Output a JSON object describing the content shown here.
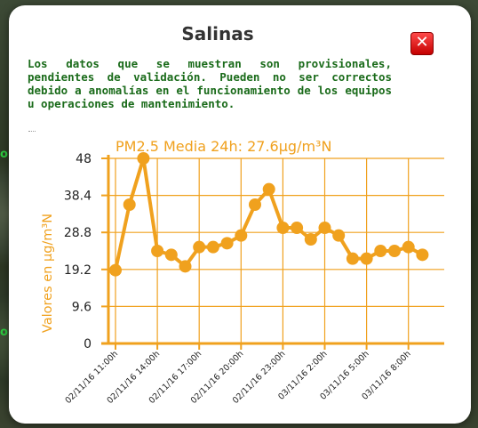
{
  "popup": {
    "title": "Salinas",
    "close_label": "✕",
    "notice": "Los datos que se muestran son provisionales, pendientes de validación. Pueden no ser correctos debido a anomalías en el funcionamiento de los equipos u operaciones de mantenimiento."
  },
  "map": {
    "side_labels": [
      "o",
      "o"
    ]
  },
  "colors": {
    "series": "#f0a11e",
    "notice": "#1a6b1a",
    "close": "#d40000"
  },
  "chart_data": {
    "type": "line",
    "title": "PM2.5 Media 24h: 27.6µg/m³N",
    "ylabel": "Valores en µg/m³N",
    "xlabel": "",
    "ylim": [
      0,
      48
    ],
    "yticks": [
      "0",
      "9.6",
      "19.2",
      "28.8",
      "38.4",
      "48"
    ],
    "ytick_values": [
      0,
      9.6,
      19.2,
      28.8,
      38.4,
      48
    ],
    "xtick_labels": [
      "02/11/16 11:00h",
      "02/11/16 14:00h",
      "02/11/16 17:00h",
      "02/11/16 20:00h",
      "02/11/16 23:00h",
      "03/11/16 2:00h",
      "03/11/16 5:00h",
      "03/11/16 8:00h"
    ],
    "xtick_indices": [
      0,
      3,
      6,
      9,
      12,
      15,
      18,
      21
    ],
    "grid": true,
    "series": [
      {
        "values": [
          19,
          36,
          48,
          24,
          23,
          20,
          25,
          25,
          26,
          28,
          36,
          40,
          30,
          30,
          27,
          30,
          28,
          22,
          22,
          24,
          24,
          25,
          23
        ]
      }
    ]
  }
}
